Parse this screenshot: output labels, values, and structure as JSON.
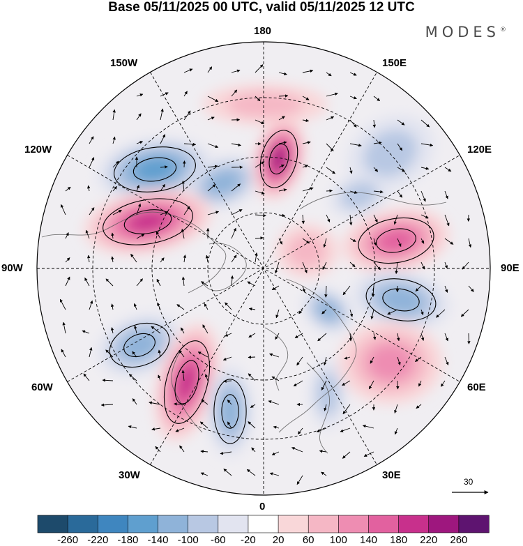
{
  "title": "Base 05/11/2025 00 UTC, valid 05/11/2025 12 UTC",
  "brand": "MODES",
  "brand_mark": "®",
  "lon_labels": {
    "n180": "180",
    "e150": "150E",
    "e120": "120E",
    "e90": "90E",
    "e60": "60E",
    "e30": "30E",
    "s0": "0",
    "w30": "30W",
    "w60": "60W",
    "w90": "90W",
    "w120": "120W",
    "w150": "150W"
  },
  "reference_vector": {
    "label": "30"
  },
  "colorbar": {
    "ticks": [
      "-260",
      "-220",
      "-180",
      "-140",
      "-100",
      "-60",
      "-20",
      "20",
      "60",
      "100",
      "140",
      "180",
      "220",
      "260"
    ],
    "colors": [
      "#1d4a6b",
      "#2a6a9a",
      "#3f86bf",
      "#5f9fcf",
      "#8fb3d9",
      "#b8c8e3",
      "#e2e4f0",
      "#ffffff",
      "#f9d7d9",
      "#f5b7c5",
      "#ee8db2",
      "#e2619f",
      "#c8308c",
      "#9e177e",
      "#5e1470"
    ]
  },
  "map_data": {
    "projection": "north-polar-stereographic",
    "field": "geopotential height anomaly",
    "anomaly_centers": [
      {
        "sign": "negative",
        "strength": 7
      },
      {
        "sign": "negative",
        "strength": 5
      },
      {
        "sign": "positive",
        "strength": 10
      },
      {
        "sign": "positive",
        "strength": 11
      },
      {
        "sign": "positive",
        "strength": 7
      },
      {
        "sign": "negative",
        "strength": 6
      },
      {
        "sign": "negative",
        "strength": 5
      },
      {
        "sign": "negative",
        "strength": 6
      },
      {
        "sign": "positive",
        "strength": 10
      },
      {
        "sign": "negative",
        "strength": 6
      },
      {
        "sign": "negative",
        "strength": 4
      },
      {
        "sign": "negative",
        "strength": 4
      },
      {
        "sign": "negative",
        "strength": 4
      },
      {
        "sign": "positive",
        "strength": 5
      },
      {
        "sign": "positive",
        "strength": 4
      },
      {
        "sign": "positive",
        "strength": 3
      }
    ]
  }
}
